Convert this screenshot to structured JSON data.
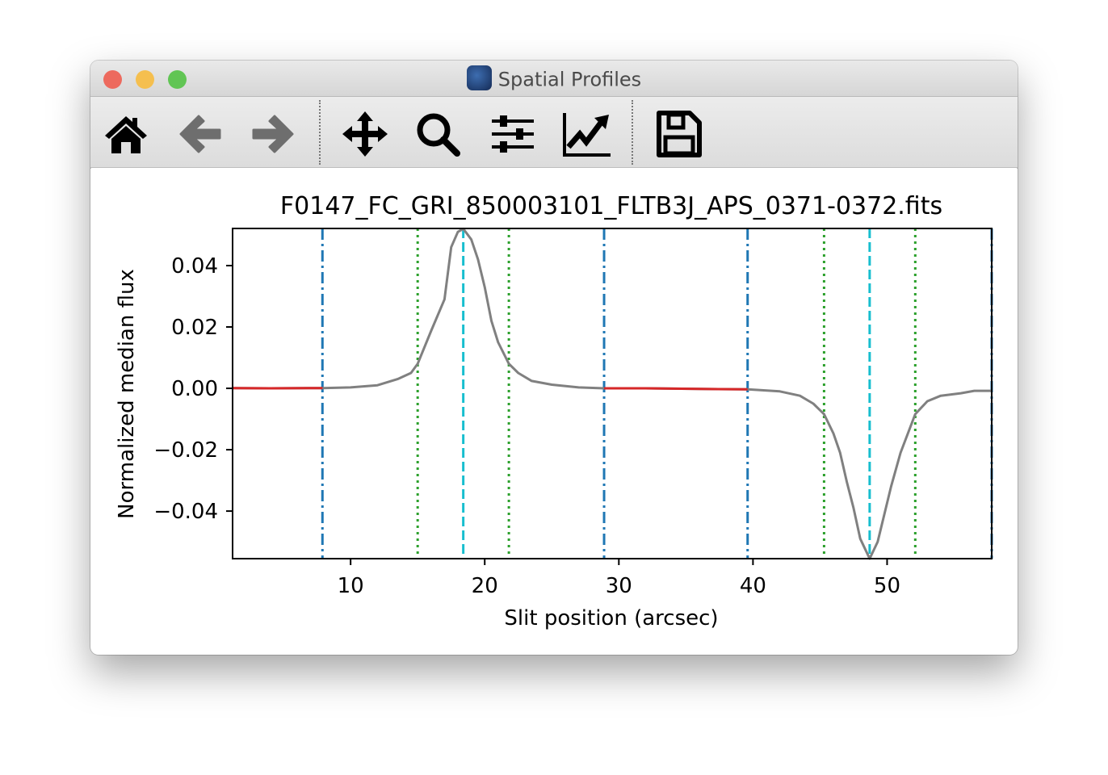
{
  "window": {
    "title": "Spatial Profiles",
    "traffic_lights": {
      "close": "#ed6a5e",
      "minimize": "#f5bf4f",
      "zoom": "#61c554"
    }
  },
  "toolbar": {
    "items": [
      {
        "icon": "home-icon",
        "enabled": true
      },
      {
        "icon": "back-arrow-icon",
        "enabled": false
      },
      {
        "icon": "forward-arrow-icon",
        "enabled": false
      },
      {
        "icon": "pan-move-icon",
        "enabled": true
      },
      {
        "icon": "zoom-magnifier-icon",
        "enabled": true
      },
      {
        "icon": "subplot-sliders-icon",
        "enabled": true
      },
      {
        "icon": "edit-axis-chart-icon",
        "enabled": true
      },
      {
        "icon": "save-floppy-icon",
        "enabled": true
      }
    ]
  },
  "chart_data": {
    "type": "line",
    "title": "F0147_FC_GRI_850003101_FLTB3J_APS_0371-0372.fits",
    "xlabel": "Slit position (arcsec)",
    "ylabel": "Normalized median flux",
    "xlim": [
      1.2,
      57.8
    ],
    "ylim": [
      -0.0555,
      0.0521
    ],
    "xticks": [
      10,
      20,
      30,
      40,
      50
    ],
    "xtick_labels": [
      "10",
      "20",
      "30",
      "40",
      "50"
    ],
    "yticks": [
      -0.04,
      -0.02,
      0.0,
      0.02,
      0.04
    ],
    "ytick_labels": [
      "−0.04",
      "−0.02",
      "0.00",
      "0.02",
      "0.04"
    ],
    "grid": false,
    "profile": {
      "color": "#808080",
      "x": [
        1.2,
        4,
        7.9,
        10,
        12,
        13.5,
        14.5,
        15,
        16,
        17,
        17.5,
        18,
        18.4,
        19,
        19.5,
        20,
        20.5,
        21,
        21.8,
        22.5,
        23.5,
        25,
        27,
        28.9,
        32,
        36,
        39.6,
        42,
        43.5,
        44.5,
        45.3,
        46,
        46.5,
        47,
        47.5,
        48,
        48.7,
        49.3,
        49.8,
        50.3,
        51,
        52.1,
        53,
        54,
        55.5,
        56.5,
        57.8
      ],
      "y": [
        0.0001,
        0.0,
        0.0001,
        0.0003,
        0.001,
        0.003,
        0.005,
        0.008,
        0.0187,
        0.029,
        0.046,
        0.051,
        0.052,
        0.0485,
        0.042,
        0.033,
        0.022,
        0.015,
        0.008,
        0.005,
        0.0024,
        0.0012,
        0.0003,
        0.0,
        0.0,
        -0.0002,
        -0.0003,
        -0.001,
        -0.0024,
        -0.005,
        -0.0084,
        -0.0147,
        -0.021,
        -0.0305,
        -0.039,
        -0.049,
        -0.0555,
        -0.05,
        -0.041,
        -0.032,
        -0.021,
        -0.0084,
        -0.0042,
        -0.0024,
        -0.0016,
        -0.0008,
        -0.0008
      ]
    },
    "background_segments": {
      "color": "#d62728",
      "segments": [
        {
          "x": [
            1.2,
            4,
            7.9
          ],
          "y": [
            0.0001,
            0.0,
            0.0001
          ]
        },
        {
          "x": [
            28.9,
            32,
            36,
            39.6
          ],
          "y": [
            0.0,
            0.0,
            -0.0002,
            -0.0003
          ]
        }
      ]
    },
    "vlines": [
      {
        "style": "dashdot",
        "color": "#1f77b4",
        "x": [
          7.9,
          28.9,
          39.6,
          57.8
        ]
      },
      {
        "style": "dotted",
        "color": "#2ca02c",
        "x": [
          15.0,
          21.8,
          45.3,
          52.1
        ]
      },
      {
        "style": "dashed",
        "color": "#17becf",
        "x": [
          18.4,
          48.7
        ]
      }
    ]
  }
}
